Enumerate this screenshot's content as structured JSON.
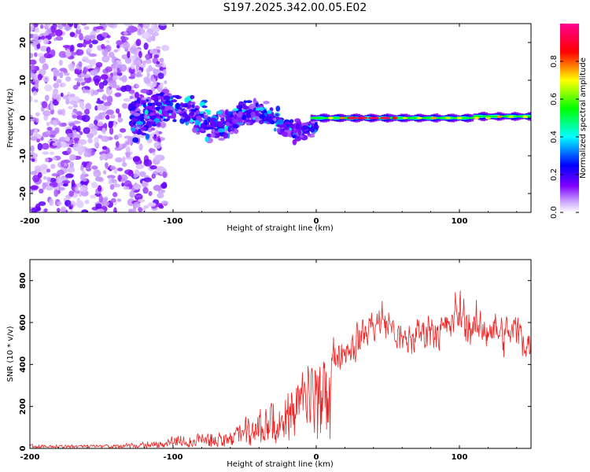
{
  "title": "S197.2025.342.00.05.E02",
  "chart_data": [
    {
      "type": "heatmap",
      "name": "spectrogram",
      "xlabel": "Height of straight line (km)",
      "ylabel": "Frequency (Hz)",
      "xlim": [
        -200,
        150
      ],
      "ylim": [
        -25,
        25
      ],
      "xticks": [
        -200,
        -100,
        0,
        100
      ],
      "yticks": [
        -20,
        -10,
        0,
        10,
        20
      ],
      "colorbar": {
        "label": "Normalized spectral amplitude",
        "range": [
          0,
          1
        ],
        "ticks": [
          "0.0",
          "0.2",
          "0.4",
          "0.6",
          "0.8"
        ],
        "tick_values": [
          0,
          0.2,
          0.4,
          0.6,
          0.8
        ],
        "colors": [
          "#ffffff",
          "#7f00ff",
          "#0000ff",
          "#00ffff",
          "#00ff00",
          "#ffff00",
          "#ff0000",
          "#ff007f"
        ]
      },
      "features": [
        {
          "description": "scattered weak noise blobs",
          "x_range": [
            -200,
            -120
          ],
          "freq_range": [
            -25,
            25
          ]
        },
        {
          "description": "transition band with medium amplitude",
          "x_range": [
            -130,
            0
          ],
          "freq_range": [
            -13,
            10
          ]
        },
        {
          "description": "strong narrow line near 0 Hz",
          "x_range": [
            0,
            150
          ],
          "freq_center": 0,
          "peak_amplitude": 1.0
        }
      ]
    },
    {
      "type": "line",
      "name": "snr",
      "xlabel": "Height of straight line (km)",
      "ylabel": "SNR (10 * v/v)",
      "xlim": [
        -200,
        150
      ],
      "ylim": [
        0,
        900
      ],
      "xticks": [
        -200,
        -100,
        0,
        100
      ],
      "yticks": [
        0,
        200,
        400,
        600,
        800
      ],
      "color": "#ee2222",
      "envelope": {
        "x": [
          -200,
          -150,
          -120,
          -100,
          -80,
          -60,
          -40,
          -30,
          -20,
          -10,
          0,
          10,
          20,
          30,
          40,
          50,
          60,
          70,
          80,
          90,
          100,
          110,
          120,
          130,
          140,
          150
        ],
        "y": [
          15,
          15,
          22,
          45,
          60,
          80,
          130,
          190,
          240,
          300,
          400,
          430,
          470,
          520,
          600,
          600,
          500,
          540,
          580,
          560,
          650,
          560,
          580,
          540,
          560,
          480
        ]
      }
    }
  ]
}
